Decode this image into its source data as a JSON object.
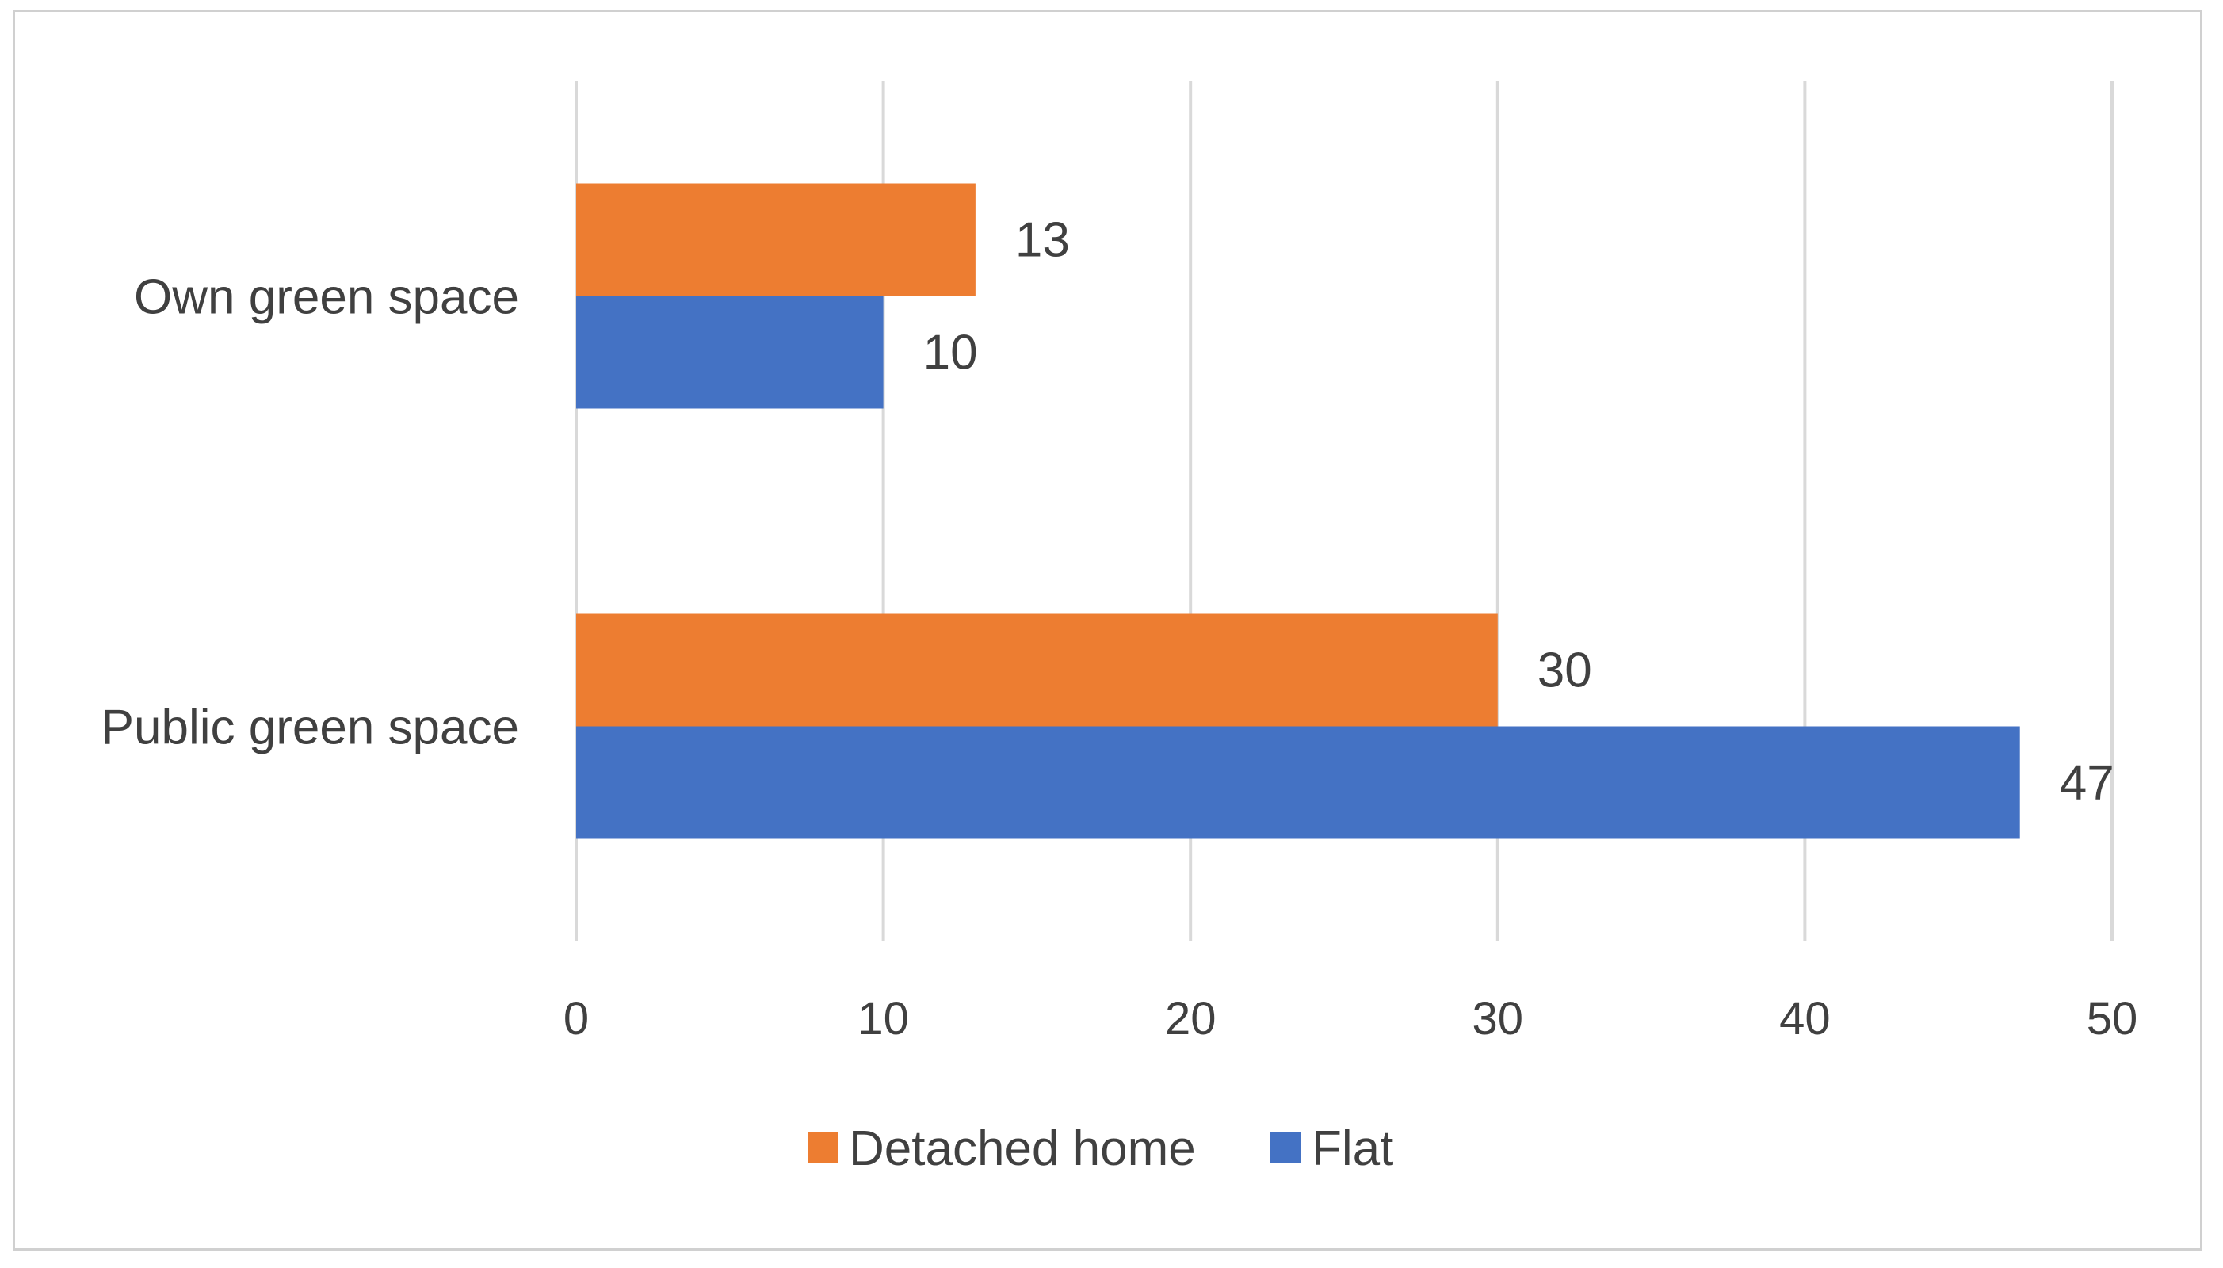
{
  "chart_data": {
    "type": "bar",
    "orientation": "horizontal",
    "categories": [
      "Own green space",
      "Public green space"
    ],
    "series": [
      {
        "name": "Detached home",
        "values": [
          13,
          30
        ],
        "color": "#ED7D31"
      },
      {
        "name": "Flat",
        "values": [
          10,
          47
        ],
        "color": "#4472C4"
      }
    ],
    "xlim": [
      0,
      50
    ],
    "xticks": [
      0,
      10,
      20,
      30,
      40,
      50
    ],
    "grid": true,
    "data_labels": true,
    "legend_position": "bottom"
  }
}
